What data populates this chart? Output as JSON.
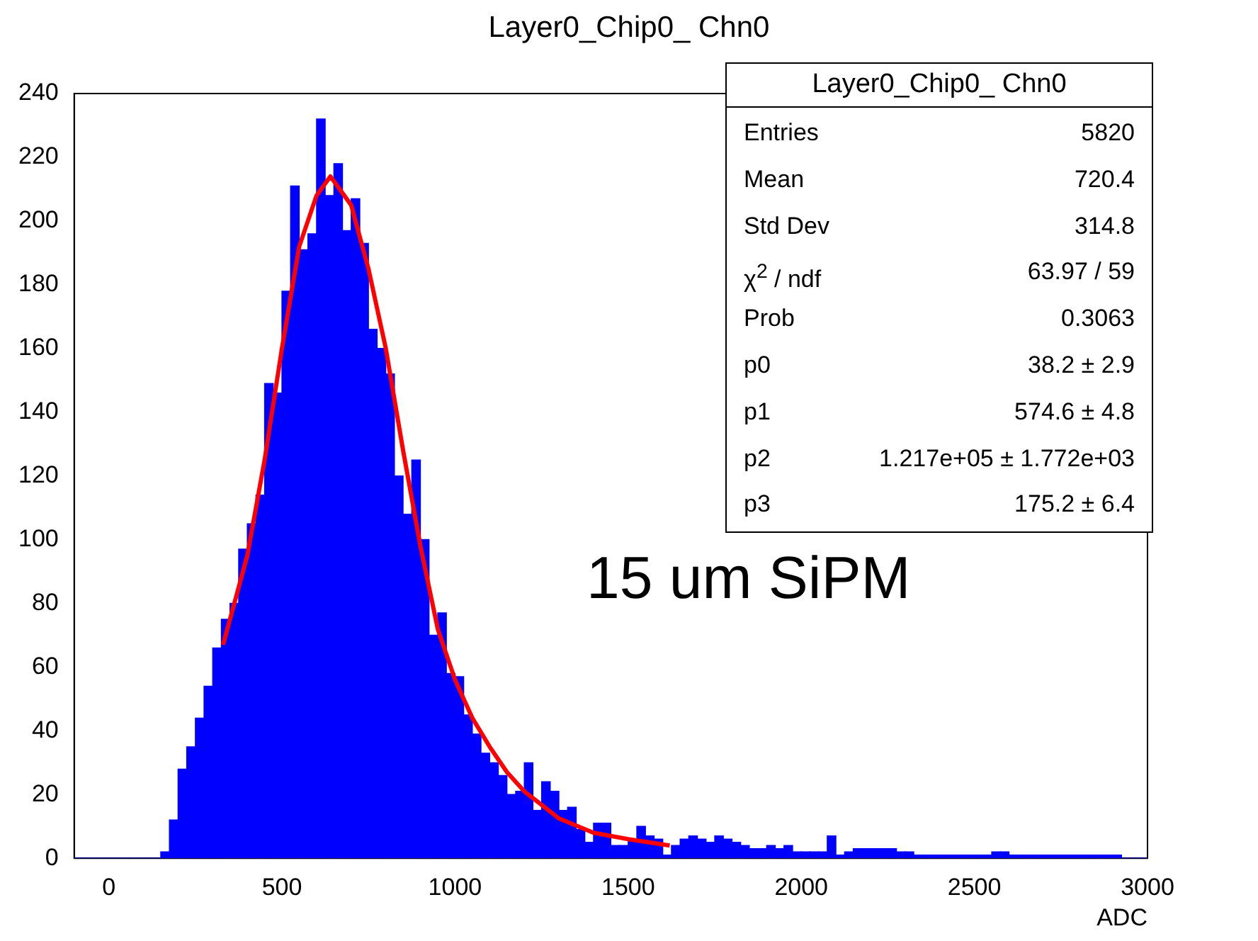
{
  "chart_data": [
    {
      "type": "histogram",
      "title": "Layer0_Chip0_ Chn0",
      "xlabel": "ADC",
      "color": "#0000ff",
      "bins": [
        -100,
        -75,
        -50,
        -25,
        0,
        25,
        50,
        75,
        100,
        125,
        150,
        175,
        200,
        225,
        250,
        275,
        300,
        325,
        350,
        375,
        400,
        425,
        450,
        475,
        500,
        525,
        550,
        575,
        600,
        625,
        650,
        675,
        700,
        725,
        750,
        775,
        800,
        825,
        850,
        875,
        900,
        925,
        950,
        975,
        1000,
        1025,
        1050,
        1075,
        1100,
        1125,
        1150,
        1175,
        1200,
        1225,
        1250,
        1275,
        1300,
        1325,
        1350,
        1375,
        1400,
        1425,
        1450,
        1475,
        1500,
        1525,
        1550,
        1575,
        1600,
        1625,
        1650,
        1675,
        1700,
        1725,
        1750,
        1775,
        1800,
        1825,
        1850,
        1875,
        1900,
        1925,
        1950,
        1975,
        2000,
        2025,
        2050,
        2075,
        2100,
        2125,
        2150,
        2175,
        2200,
        2225,
        2250,
        2275,
        2300,
        2325,
        2350,
        2375,
        2400,
        2425,
        2450,
        2475,
        2500,
        2525,
        2550,
        2575,
        2600,
        2625,
        2650,
        2675,
        2700,
        2725,
        2750,
        2775,
        2800,
        2825,
        2850,
        2875,
        2900,
        2925,
        2950,
        2975,
        3000
      ],
      "values": [
        0,
        0,
        0,
        0,
        0,
        0,
        0,
        0,
        0,
        0,
        2,
        12,
        28,
        35,
        44,
        54,
        66,
        75,
        80,
        97,
        105,
        114,
        149,
        146,
        178,
        211,
        191,
        196,
        232,
        208,
        218,
        197,
        207,
        193,
        166,
        160,
        152,
        120,
        108,
        125,
        100,
        70,
        77,
        58,
        57,
        45,
        39,
        33,
        30,
        26,
        20,
        21,
        30,
        15,
        24,
        21,
        15,
        16,
        9,
        5,
        11,
        11,
        4,
        4,
        6,
        10,
        7,
        6,
        1,
        4,
        6,
        7,
        6,
        5,
        7,
        6,
        5,
        4,
        3,
        3,
        4,
        3,
        4,
        2,
        2,
        2,
        2,
        7,
        1,
        2,
        3,
        3,
        3,
        3,
        3,
        2,
        2,
        1,
        1,
        1,
        1,
        1,
        1,
        1,
        1,
        1,
        2,
        2,
        1,
        1,
        1,
        1,
        1,
        1,
        1,
        1,
        1,
        1,
        1,
        1,
        1,
        0,
        0,
        0
      ],
      "series": [
        {
          "type": "line",
          "color": "#ff0000",
          "x": [
            330,
            400,
            450,
            500,
            550,
            600,
            640,
            700,
            750,
            800,
            850,
            900,
            950,
            1000,
            1050,
            1100,
            1150,
            1200,
            1300,
            1400,
            1500,
            1620
          ],
          "values": [
            67,
            95,
            125,
            160,
            192,
            208,
            214,
            205,
            185,
            160,
            128,
            98,
            72,
            56,
            44,
            35,
            27,
            21,
            12.5,
            8,
            6,
            4
          ]
        }
      ],
      "xlim": [
        -100,
        3000
      ],
      "xticks": [
        0,
        500,
        1000,
        1500,
        2000,
        2500,
        3000
      ],
      "ylim": [
        0,
        240
      ],
      "yticks": [
        0,
        20,
        40,
        60,
        80,
        100,
        120,
        140,
        160,
        180,
        200,
        220,
        240
      ],
      "grid": false,
      "legend": false,
      "annotations": [
        "15 um SiPM"
      ]
    },
    {
      "type": "other",
      "title": "Layer0_Chip0_ Chn0",
      "annotations": [
        "Entries",
        "5820",
        "Mean",
        "720.4",
        "Std Dev",
        "314.8",
        "χ$^{2}$ / ndf",
        "63.97 / 59",
        "Prob",
        "0.3063",
        "p0",
        "38.2 ± 2.9",
        "p1",
        "574.6 ± 4.8",
        "p2",
        "1.217e+05 ± 1.772e+03",
        "p3",
        "175.2 ± 6.4"
      ]
    }
  ]
}
